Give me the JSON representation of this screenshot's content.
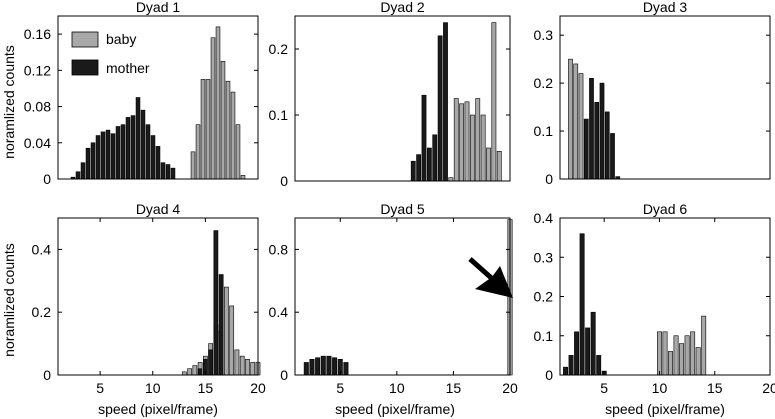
{
  "figure": {
    "ylabel": "noramlized counts",
    "xlabel": "speed (pixel/frame)"
  },
  "legend": {
    "items": [
      {
        "label": "baby",
        "color": "#a8a8a8"
      },
      {
        "label": "mother",
        "color": "#1a1a1a"
      }
    ]
  },
  "colors": {
    "baby": "#a8a8a8",
    "mother": "#1a1a1a",
    "axis": "#000000"
  },
  "chart_data": [
    {
      "type": "bar",
      "title": "Dyad 1",
      "xlim": [
        0,
        20
      ],
      "ylim": [
        0,
        0.18
      ],
      "yticks": [
        0,
        0.04,
        0.08,
        0.12,
        0.16
      ],
      "xticks": [],
      "series": [
        {
          "name": "mother",
          "color": "#1a1a1a",
          "x": [
            1.5,
            2,
            2.5,
            3,
            3.5,
            4,
            4.5,
            5,
            5.5,
            6,
            6.5,
            7,
            7.5,
            8,
            8.5,
            9,
            9.5,
            10,
            10.5,
            11,
            11.5
          ],
          "values": [
            0.002,
            0.008,
            0.018,
            0.034,
            0.04,
            0.048,
            0.052,
            0.054,
            0.05,
            0.058,
            0.06,
            0.068,
            0.07,
            0.09,
            0.076,
            0.06,
            0.048,
            0.036,
            0.018,
            0.016,
            0.012
          ]
        },
        {
          "name": "baby",
          "color": "#a8a8a8",
          "x": [
            13.5,
            14,
            14.5,
            15,
            15.5,
            16,
            16.5,
            17,
            17.5,
            18,
            18.5
          ],
          "values": [
            0.03,
            0.06,
            0.11,
            0.11,
            0.156,
            0.168,
            0.13,
            0.108,
            0.096,
            0.06,
            0.004
          ]
        }
      ]
    },
    {
      "type": "bar",
      "title": "Dyad 2",
      "xlim": [
        0,
        20
      ],
      "ylim": [
        0,
        0.25
      ],
      "yticks": [
        0,
        0.1,
        0.2
      ],
      "xticks": [],
      "series": [
        {
          "name": "mother",
          "color": "#1a1a1a",
          "x": [
            11,
            11.5,
            12,
            12.5,
            13,
            13.5,
            14
          ],
          "values": [
            0.03,
            0.04,
            0.13,
            0.05,
            0.07,
            0.22,
            0.24
          ]
        },
        {
          "name": "baby",
          "color": "#a8a8a8",
          "x": [
            14.5,
            15,
            15.5,
            16,
            16.5,
            17,
            17.5,
            18,
            18.5,
            19
          ],
          "values": [
            0.005,
            0.125,
            0.117,
            0.12,
            0.1,
            0.125,
            0.1,
            0.05,
            0.24,
            0.045
          ]
        }
      ]
    },
    {
      "type": "bar",
      "title": "Dyad 3",
      "xlim": [
        0,
        20
      ],
      "ylim": [
        0,
        0.34
      ],
      "yticks": [
        0,
        0.1,
        0.2,
        0.3
      ],
      "xticks": [],
      "series": [
        {
          "name": "baby",
          "color": "#a8a8a8",
          "x": [
            1,
            1.5,
            2
          ],
          "values": [
            0.25,
            0.24,
            0.22
          ]
        },
        {
          "name": "mother",
          "color": "#1a1a1a",
          "x": [
            2.5,
            3,
            3.5,
            4,
            4.5,
            5,
            5.5
          ],
          "values": [
            0.125,
            0.21,
            0.16,
            0.2,
            0.14,
            0.095,
            0.005
          ]
        }
      ]
    },
    {
      "type": "bar",
      "title": "Dyad 4",
      "xlim": [
        1,
        20
      ],
      "ylim": [
        0,
        0.5
      ],
      "yticks": [
        0,
        0.2,
        0.4
      ],
      "xticks": [
        5,
        10,
        15,
        20
      ],
      "series": [
        {
          "name": "baby",
          "color": "#a8a8a8",
          "x": [
            13,
            13.5,
            14,
            14.5,
            15,
            15.5,
            16,
            16.5,
            17,
            17.5,
            18,
            18.5,
            19,
            19.5,
            20
          ],
          "values": [
            0.01,
            0.02,
            0.03,
            0.04,
            0.06,
            0.1,
            0.16,
            0.14,
            0.28,
            0.22,
            0.08,
            0.06,
            0.05,
            0.04,
            0.04
          ]
        },
        {
          "name": "mother",
          "color": "#1a1a1a",
          "x": [
            14.5,
            15,
            15.5,
            16,
            16.5
          ],
          "values": [
            0.02,
            0.05,
            0.08,
            0.46,
            0.32
          ]
        }
      ]
    },
    {
      "type": "bar",
      "title": "Dyad 5",
      "xlim": [
        1,
        20
      ],
      "ylim": [
        0,
        1.0
      ],
      "yticks": [
        0,
        0.4,
        0.8
      ],
      "xticks": [
        5,
        10,
        15,
        20
      ],
      "annotation": {
        "type": "arrow",
        "target": [
          20,
          0.6
        ]
      },
      "series": [
        {
          "name": "mother",
          "color": "#1a1a1a",
          "x": [
            2,
            2.5,
            3,
            3.5,
            4,
            4.5,
            5,
            5.5
          ],
          "values": [
            0.08,
            0.1,
            0.11,
            0.12,
            0.12,
            0.11,
            0.1,
            0.08
          ]
        },
        {
          "name": "baby",
          "color": "#a8a8a8",
          "x": [
            20
          ],
          "values": [
            0.99
          ]
        }
      ]
    },
    {
      "type": "bar",
      "title": "Dyad 6",
      "xlim": [
        1,
        20
      ],
      "ylim": [
        0,
        0.4
      ],
      "yticks": [
        0,
        0.1,
        0.2,
        0.3,
        0.4
      ],
      "xticks": [
        5,
        10,
        15,
        20
      ],
      "series": [
        {
          "name": "mother",
          "color": "#1a1a1a",
          "x": [
            1.5,
            2,
            2.5,
            3,
            3.5,
            4,
            4.5,
            5
          ],
          "values": [
            0.02,
            0.05,
            0.11,
            0.36,
            0.12,
            0.16,
            0.05,
            0.01
          ]
        },
        {
          "name": "baby",
          "color": "#a8a8a8",
          "x": [
            10,
            10.5,
            11,
            11.5,
            12,
            12.5,
            13,
            13.5,
            14
          ],
          "values": [
            0.11,
            0.11,
            0.06,
            0.1,
            0.08,
            0.1,
            0.11,
            0.07,
            0.15
          ]
        }
      ]
    }
  ]
}
